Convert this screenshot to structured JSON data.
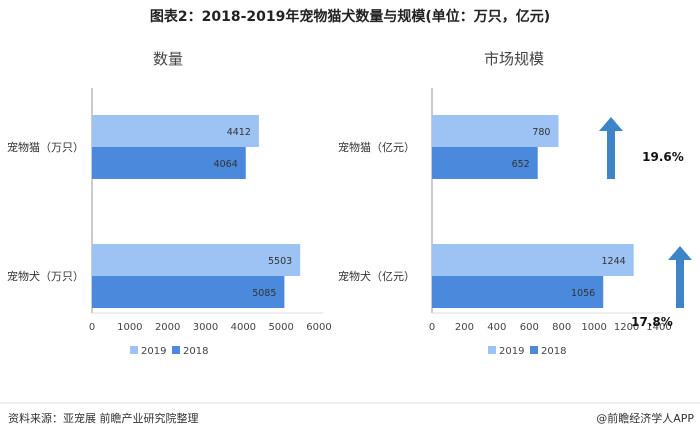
{
  "title": "图表2：2018-2019年宠物猫犬数量与规模(单位：万只，亿元)",
  "footer": {
    "source": "资料来源：亚宠展 前瞻产业研究院整理",
    "brand": "@前瞻经济学人APP"
  },
  "colors": {
    "y2019": "#9dc3f5",
    "y2018": "#4a89dc",
    "arrow": "#3d85c6",
    "axis": "#999999"
  },
  "chart_data": [
    {
      "type": "bar",
      "orientation": "horizontal",
      "title": "数量",
      "categories": [
        "宠物猫（万只）",
        "宠物犬（万只）"
      ],
      "series": [
        {
          "name": "2019",
          "values": [
            4412,
            5503
          ]
        },
        {
          "name": "2018",
          "values": [
            4064,
            5085
          ]
        }
      ],
      "xlim": [
        0,
        6000
      ],
      "xticks": [
        0,
        1000,
        2000,
        3000,
        4000,
        5000,
        6000
      ],
      "legend_position": "bottom"
    },
    {
      "type": "bar",
      "orientation": "horizontal",
      "title": "市场规模",
      "categories": [
        "宠物猫（亿元）",
        "宠物犬（亿元）"
      ],
      "series": [
        {
          "name": "2019",
          "values": [
            780,
            1244
          ]
        },
        {
          "name": "2018",
          "values": [
            652,
            1056
          ]
        }
      ],
      "xlim": [
        0,
        1400
      ],
      "xticks": [
        0,
        200,
        400,
        600,
        800,
        1000,
        1200,
        1400
      ],
      "annotations": [
        "19.6%",
        "17.8%"
      ],
      "legend_position": "bottom"
    }
  ]
}
